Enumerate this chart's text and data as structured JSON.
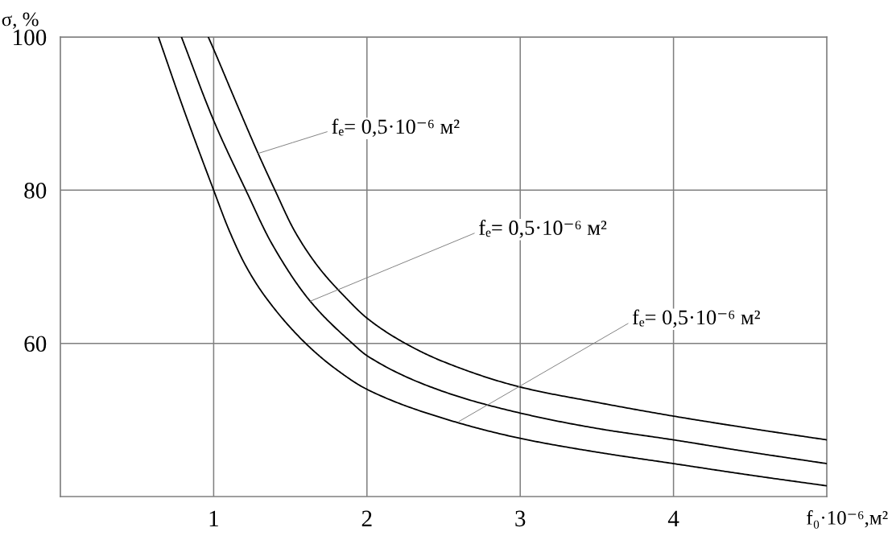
{
  "chart_data": {
    "type": "line",
    "xlabel": "f₀·10⁻⁶,м²",
    "ylabel": "σ, %",
    "series": [
      {
        "color": "#000000",
        "x": [
          0.64,
          0.8,
          1.0,
          1.1,
          1.21,
          1.34,
          1.6,
          1.8,
          2.0,
          2.5,
          3.0,
          3.5,
          4.0,
          4.5,
          5.0
        ],
        "values": [
          100,
          90.8,
          80,
          74.8,
          70.1,
          66,
          60,
          56.6,
          54,
          50.2,
          47.6,
          45.8,
          44.3,
          42.8,
          41.4
        ]
      },
      {
        "color": "#000000",
        "x": [
          0.79,
          1.0,
          1.21,
          1.38,
          1.63,
          1.905,
          2.0,
          2.5,
          3.0,
          3.5,
          4.0,
          4.5,
          5.0
        ],
        "values": [
          100,
          89.1,
          80,
          73,
          65.5,
          60,
          58.4,
          53.7,
          50.9,
          48.9,
          47.4,
          45.8,
          44.3
        ]
      },
      {
        "color": "#000000",
        "x": [
          0.965,
          1.0,
          1.15,
          1.29,
          1.4,
          1.53,
          1.69,
          1.86,
          2.0,
          2.25,
          2.5,
          3.0,
          3.5,
          4.0,
          4.5,
          5.0
        ],
        "values": [
          100,
          98.4,
          91.3,
          84.8,
          80,
          74.6,
          69.8,
          66,
          63.3,
          60,
          57.6,
          54.3,
          52.3,
          50.5,
          48.9,
          47.4
        ]
      }
    ],
    "xlim": [
      0,
      5
    ],
    "ylim": [
      40,
      100
    ],
    "xticks": [
      1,
      2,
      3,
      4
    ],
    "yticks": [
      60,
      80,
      100
    ],
    "grid": true,
    "legend": false,
    "marker": "none",
    "line_style": "solid",
    "annotations": [
      {
        "text": "fₑ= 0,5·10⁻⁶ м²",
        "x": 1.29,
        "y": 84.8
      },
      {
        "text": "fₑ= 0,5·10⁻⁶ м²",
        "x": 1.63,
        "y": 65.5
      },
      {
        "text": "fₑ= 0,5·10⁻⁶ м²",
        "x": 2.6,
        "y": 49.8
      }
    ]
  }
}
